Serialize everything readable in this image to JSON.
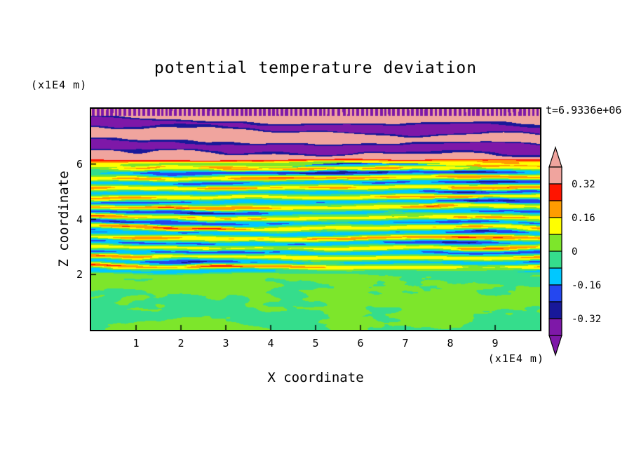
{
  "chart_data": {
    "type": "heatmap",
    "title": "potential temperature deviation",
    "time_label": "t=6.9336e+06",
    "xlabel": "X coordinate",
    "ylabel": "Z coordinate",
    "x_unit_label": "(x1E4 m)",
    "z_unit_label": "(x1E4 m)",
    "x_range": [
      0,
      10
    ],
    "z_range": [
      0,
      8
    ],
    "x_ticks": [
      "1",
      "2",
      "3",
      "4",
      "5",
      "6",
      "7",
      "8",
      "9"
    ],
    "z_ticks": [
      "2",
      "4",
      "6"
    ],
    "grid": false,
    "legend_position": "right-colorbar",
    "colorbar": {
      "tick_labels": [
        "0.32",
        "0.16",
        "0",
        "-0.16",
        "-0.32"
      ],
      "levels_top_to_bottom": [
        0.4,
        0.32,
        0.24,
        0.16,
        0.08,
        0,
        -0.08,
        -0.16,
        -0.24,
        -0.32,
        -0.4
      ],
      "colors_top_to_bottom": [
        "#F0A49E",
        "#FF1400",
        "#FF9C00",
        "#FFFF00",
        "#7DE62B",
        "#35DD8C",
        "#00C8FF",
        "#2447F0",
        "#181899",
        "#7E18A8"
      ],
      "over_arrow_color": "#F0A49E",
      "under_arrow_color": "#7E18A8"
    },
    "field": {
      "value_range": [
        -0.4,
        0.4
      ],
      "description": "stratified turbulence: fine vertical purple/pink stripes at very top, pink layer with purple billows above z~6, multicolor turbulent filaments between z~2 and z~6, near-zero two-tone green mixed layer below z~2"
    }
  }
}
